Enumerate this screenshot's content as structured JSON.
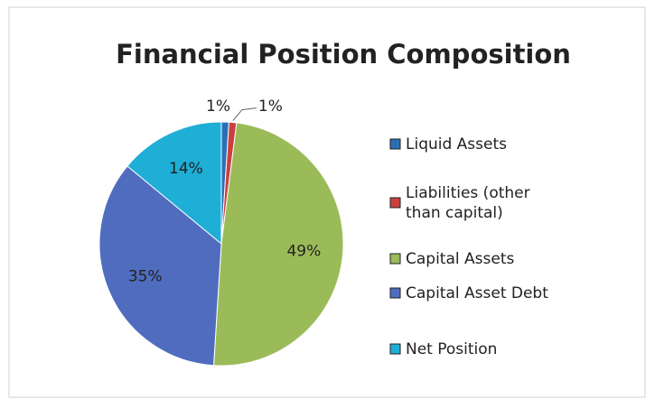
{
  "chart_data": {
    "type": "pie",
    "title": "Financial Position Composition",
    "categories": [
      "Liquid Assets",
      "Liabilities (other than capital)",
      "Capital Assets",
      "Capital Asset Debt",
      "Net Position"
    ],
    "values": [
      1,
      1,
      49,
      35,
      14
    ],
    "value_labels": [
      "1%",
      "1%",
      "49%",
      "35%",
      "14%"
    ],
    "colors": [
      "#2d6fb7",
      "#c9413f",
      "#9bbb59",
      "#4f6cbf",
      "#1faed6"
    ],
    "legend": "right"
  }
}
